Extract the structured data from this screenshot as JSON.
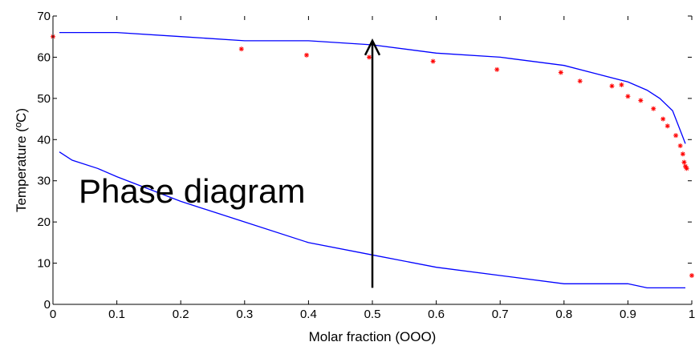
{
  "chart_data": {
    "type": "line",
    "title": "",
    "xlabel": "Molar fraction (OOO)",
    "ylabel": "Temperature (ºC)",
    "xlim": [
      0,
      1
    ],
    "ylim": [
      0,
      70
    ],
    "xticks": [
      0,
      0.1,
      0.2,
      0.3,
      0.4,
      0.5,
      0.6,
      0.7,
      0.8,
      0.9,
      1
    ],
    "xtick_labels": [
      "0",
      "0.1",
      "0.2",
      "0.3",
      "0.4",
      "0.5",
      "0.6",
      "0.7",
      "0.8",
      "0.9",
      "1"
    ],
    "yticks": [
      0,
      10,
      20,
      30,
      40,
      50,
      60,
      70
    ],
    "ytick_labels": [
      "0",
      "10",
      "20",
      "30",
      "40",
      "50",
      "60",
      "70"
    ],
    "grid": false,
    "annotation": {
      "text": "Phase diagram",
      "arrow_x": 0.5,
      "arrow_y_from": 4,
      "arrow_y_to": 64
    },
    "series": [
      {
        "kind": "line",
        "color": "#0000ff",
        "x": [
          0.01,
          0.1,
          0.2,
          0.3,
          0.4,
          0.5,
          0.6,
          0.7,
          0.8,
          0.85,
          0.9,
          0.93,
          0.95,
          0.97,
          0.985,
          0.99
        ],
        "y": [
          66,
          66,
          65,
          64,
          64,
          63,
          61,
          60,
          58,
          56,
          54,
          52,
          50,
          47,
          41,
          39
        ]
      },
      {
        "kind": "line",
        "color": "#0000ff",
        "x": [
          0.01,
          0.03,
          0.07,
          0.1,
          0.2,
          0.3,
          0.4,
          0.5,
          0.6,
          0.7,
          0.8,
          0.9,
          0.93,
          0.95,
          0.98,
          0.99
        ],
        "y": [
          37,
          35,
          33,
          31,
          25,
          20,
          15,
          12,
          9,
          7,
          5,
          5,
          4,
          4,
          4,
          4
        ]
      },
      {
        "kind": "scatter",
        "color": "#ff0000",
        "x": [
          0.0,
          0.295,
          0.397,
          0.495,
          0.595,
          0.695,
          0.795,
          0.825,
          0.875,
          0.89,
          0.9,
          0.92,
          0.94,
          0.955,
          0.962,
          0.975,
          0.982,
          0.986,
          0.988,
          0.99,
          0.992,
          1.0
        ],
        "y": [
          65,
          62,
          60.5,
          60,
          59,
          57,
          56.3,
          54.2,
          53,
          53.3,
          50.5,
          49.5,
          47.5,
          45,
          43.3,
          41,
          38.5,
          36.5,
          34.5,
          33.5,
          33,
          7
        ]
      }
    ]
  }
}
